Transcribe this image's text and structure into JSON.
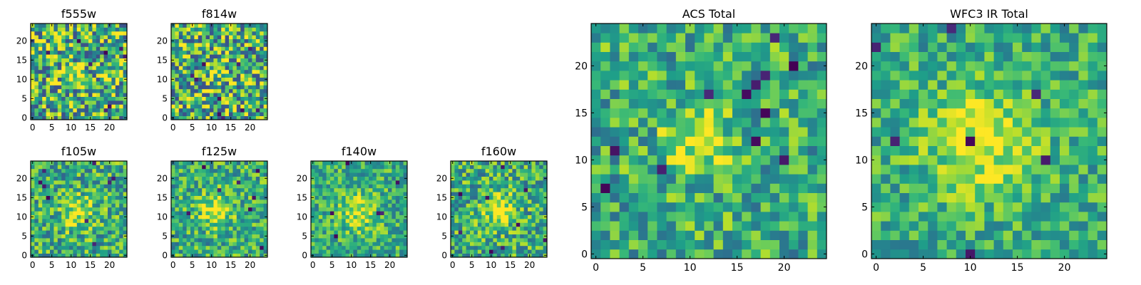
{
  "figure": {
    "description_title": ""
  },
  "chart_data": [
    {
      "id": "f555w",
      "type": "heatmap",
      "title": "f555w",
      "grid_size": 25,
      "xlim": [
        0,
        24
      ],
      "ylim": [
        0,
        24
      ],
      "xticks": [
        0,
        5,
        10,
        15,
        20
      ],
      "yticks": [
        0,
        5,
        10,
        15,
        20
      ],
      "colormap": "viridis",
      "source_center": [
        11,
        11
      ],
      "source_sigma": 2.0,
      "source_amp": 0.35,
      "noise": 0.9,
      "dark_pixels": 8,
      "seed": 11
    },
    {
      "id": "f814w",
      "type": "heatmap",
      "title": "f814w",
      "grid_size": 25,
      "xlim": [
        0,
        24
      ],
      "ylim": [
        0,
        24
      ],
      "xticks": [
        0,
        5,
        10,
        15,
        20
      ],
      "yticks": [
        0,
        5,
        10,
        15,
        20
      ],
      "colormap": "viridis",
      "source_center": [
        11,
        12
      ],
      "source_sigma": 2.0,
      "source_amp": 0.3,
      "noise": 0.9,
      "dark_pixels": 10,
      "seed": 23
    },
    {
      "id": "f105w",
      "type": "heatmap",
      "title": "f105w",
      "grid_size": 25,
      "xlim": [
        0,
        24
      ],
      "ylim": [
        0,
        24
      ],
      "xticks": [
        0,
        5,
        10,
        15,
        20
      ],
      "yticks": [
        0,
        5,
        10,
        15,
        20
      ],
      "colormap": "viridis",
      "source_center": [
        12,
        11
      ],
      "source_sigma": 3.0,
      "source_amp": 0.3,
      "noise": 0.6,
      "dark_pixels": 9,
      "seed": 37
    },
    {
      "id": "f125w",
      "type": "heatmap",
      "title": "f125w",
      "grid_size": 25,
      "xlim": [
        0,
        24
      ],
      "ylim": [
        0,
        24
      ],
      "xticks": [
        0,
        5,
        10,
        15,
        20
      ],
      "yticks": [
        0,
        5,
        10,
        15,
        20
      ],
      "colormap": "viridis",
      "source_center": [
        11,
        12
      ],
      "source_sigma": 3.0,
      "source_amp": 0.35,
      "noise": 0.55,
      "dark_pixels": 8,
      "seed": 41
    },
    {
      "id": "f140w",
      "type": "heatmap",
      "title": "f140w",
      "grid_size": 25,
      "xlim": [
        0,
        24
      ],
      "ylim": [
        0,
        24
      ],
      "xticks": [
        0,
        5,
        10,
        15,
        20
      ],
      "yticks": [
        0,
        5,
        10,
        15,
        20
      ],
      "colormap": "viridis",
      "source_center": [
        12,
        11
      ],
      "source_sigma": 3.5,
      "source_amp": 0.3,
      "noise": 0.5,
      "dark_pixels": 6,
      "seed": 53
    },
    {
      "id": "f160w",
      "type": "heatmap",
      "title": "f160w",
      "grid_size": 25,
      "xlim": [
        0,
        24
      ],
      "ylim": [
        0,
        24
      ],
      "xticks": [
        0,
        5,
        10,
        15,
        20
      ],
      "yticks": [
        0,
        5,
        10,
        15,
        20
      ],
      "colormap": "viridis",
      "source_center": [
        12,
        12
      ],
      "source_sigma": 3.0,
      "source_amp": 0.4,
      "noise": 0.6,
      "dark_pixels": 9,
      "seed": 67
    },
    {
      "id": "acs-total",
      "type": "heatmap",
      "title": "ACS Total",
      "grid_size": 25,
      "xlim": [
        0,
        24
      ],
      "ylim": [
        0,
        24
      ],
      "xticks": [
        0,
        5,
        10,
        15,
        20
      ],
      "yticks": [
        0,
        5,
        10,
        15,
        20
      ],
      "colormap": "viridis",
      "source_center": [
        11,
        12
      ],
      "source_sigma": 2.5,
      "source_amp": 0.35,
      "noise": 0.55,
      "dark_pixels": 12,
      "seed": 79
    },
    {
      "id": "wfc3-ir-total",
      "type": "heatmap",
      "title": "WFC3 IR Total",
      "grid_size": 25,
      "xlim": [
        0,
        24
      ],
      "ylim": [
        0,
        24
      ],
      "xticks": [
        0,
        5,
        10,
        15,
        20
      ],
      "yticks": [
        0,
        5,
        10,
        15,
        20
      ],
      "colormap": "viridis",
      "source_center": [
        11,
        12
      ],
      "source_sigma": 4.0,
      "source_amp": 0.35,
      "noise": 0.45,
      "dark_pixels": 7,
      "seed": 97
    }
  ]
}
